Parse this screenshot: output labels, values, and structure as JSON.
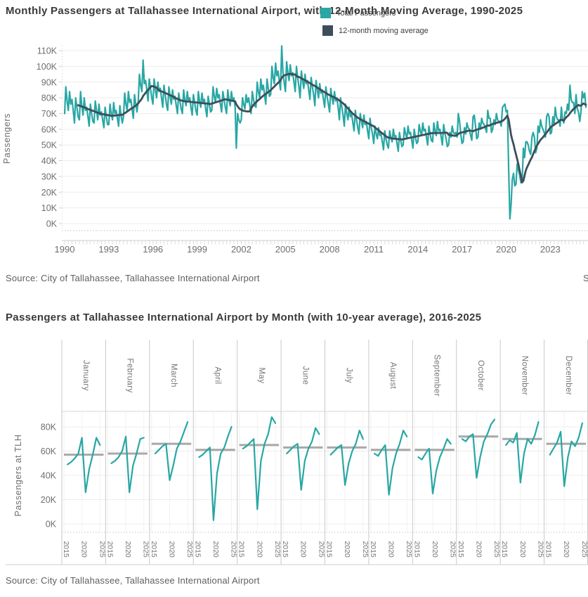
{
  "sources": {
    "chart1": "Source: City of Tallahassee, Tallahassee International Airport",
    "chart2": "Source: City of Tallahassee, Tallahassee International Airport",
    "clipped": "S"
  },
  "chart_data": [
    {
      "type": "line",
      "title": "Monthly Passengers at Tallahassee International Airport, with 12-Month Moving Average, 1990-2025",
      "xlabel": "",
      "ylabel": "Passengers",
      "units": "passengers (thousands)",
      "ylim_thousands": [
        0,
        115
      ],
      "yticks": [
        "0K",
        "10K",
        "20K",
        "30K",
        "40K",
        "50K",
        "60K",
        "70K",
        "80K",
        "90K",
        "100K",
        "110K"
      ],
      "x_tick_years": [
        1990,
        1993,
        1996,
        1999,
        2002,
        2005,
        2008,
        2011,
        2014,
        2017,
        2020,
        2023
      ],
      "x_range": [
        "1990-01",
        "2025-06"
      ],
      "legend_position": "top",
      "grid": true,
      "series": [
        {
          "name": "Total Passengers",
          "color": "#28A7A4",
          "values_by_year": {
            "1990": [
              70,
              87,
              78,
              72,
              84,
              76,
              79,
              72,
              64,
              80,
              74,
              68
            ],
            "1991": [
              66,
              84,
              75,
              69,
              80,
              72,
              74,
              68,
              62,
              76,
              70,
              65
            ],
            "1992": [
              64,
              78,
              72,
              66,
              76,
              69,
              71,
              66,
              61,
              74,
              68,
              63
            ],
            "1993": [
              63,
              76,
              70,
              66,
              77,
              70,
              72,
              67,
              62,
              75,
              69,
              64
            ],
            "1994": [
              68,
              83,
              76,
              72,
              84,
              77,
              79,
              73,
              67,
              82,
              76,
              71
            ],
            "1995": [
              78,
              95,
              88,
              84,
              104,
              89,
              91,
              85,
              78,
              92,
              86,
              80
            ],
            "1996": [
              76,
              92,
              85,
              80,
              90,
              84,
              86,
              80,
              74,
              88,
              82,
              76
            ],
            "1997": [
              72,
              87,
              81,
              76,
              85,
              79,
              81,
              75,
              70,
              83,
              78,
              73
            ],
            "1998": [
              70,
              85,
              79,
              75,
              84,
              78,
              80,
              74,
              69,
              82,
              77,
              72
            ],
            "1999": [
              69,
              84,
              78,
              74,
              83,
              77,
              79,
              73,
              68,
              81,
              76,
              71
            ],
            "2000": [
              72,
              87,
              81,
              77,
              86,
              80,
              82,
              76,
              71,
              84,
              79,
              74
            ],
            "2001": [
              70,
              85,
              79,
              75,
              84,
              78,
              80,
              74,
              48,
              70,
              66,
              64
            ],
            "2002": [
              66,
              80,
              76,
              73,
              82,
              77,
              80,
              75,
              70,
              84,
              79,
              75
            ],
            "2003": [
              74,
              90,
              84,
              80,
              92,
              85,
              88,
              82,
              76,
              92,
              86,
              81
            ],
            "2004": [
              82,
              100,
              93,
              89,
              102,
              94,
              97,
              91,
              85,
              113,
              96,
              90
            ],
            "2005": [
              84,
              103,
              96,
              91,
              101,
              94,
              96,
              90,
              84,
              100,
              93,
              87
            ],
            "2006": [
              80,
              97,
              91,
              86,
              95,
              89,
              91,
              85,
              79,
              93,
              87,
              82
            ],
            "2007": [
              75,
              91,
              85,
              80,
              89,
              83,
              85,
              79,
              74,
              87,
              81,
              76
            ],
            "2008": [
              71,
              86,
              80,
              76,
              84,
              78,
              80,
              74,
              66,
              80,
              74,
              69
            ],
            "2009": [
              62,
              76,
              70,
              66,
              74,
              68,
              70,
              64,
              59,
              72,
              66,
              61
            ],
            "2010": [
              57,
              70,
              65,
              61,
              69,
              63,
              65,
              59,
              54,
              67,
              61,
              57
            ],
            "2011": [
              51,
              62,
              57,
              54,
              61,
              56,
              57,
              52,
              47,
              59,
              54,
              50
            ],
            "2012": [
              48,
              59,
              55,
              52,
              60,
              55,
              56,
              51,
              46,
              58,
              53,
              49
            ],
            "2013": [
              50,
              61,
              57,
              54,
              62,
              57,
              58,
              53,
              48,
              60,
              55,
              51
            ],
            "2014": [
              52,
              63,
              59,
              56,
              64,
              59,
              60,
              55,
              50,
              62,
              57,
              53
            ],
            "2015": [
              52,
              64,
              59,
              56,
              65,
              59,
              60,
              55,
              50,
              63,
              58,
              54
            ],
            "2016": [
              49,
              50,
              58,
              55,
              62,
              58,
              57,
              58,
              55,
              70,
              65,
              57
            ],
            "2017": [
              51,
              52,
              61,
              57,
              64,
              61,
              60,
              56,
              53,
              68,
              69,
              62
            ],
            "2018": [
              54,
              55,
              64,
              60,
              67,
              64,
              63,
              61,
              58,
              72,
              67,
              67
            ],
            "2019": [
              58,
              60,
              66,
              63,
              70,
              66,
              65,
              65,
              62,
              74,
              75,
              76
            ],
            "2020": [
              71,
              72,
              36,
              3,
              12,
              28,
              32,
              24,
              25,
              38,
              34,
              31
            ],
            "2021": [
              26,
              26,
              48,
              42,
              52,
              52,
              50,
              46,
              44,
              55,
              58,
              55
            ],
            "2022": [
              45,
              48,
              62,
              58,
              66,
              62,
              60,
              58,
              55,
              68,
              70,
              68
            ],
            "2023": [
              57,
              58,
              68,
              63,
              74,
              68,
              66,
              66,
              62,
              74,
              66,
              64
            ],
            "2024": [
              71,
              70,
              76,
              72,
              88,
              79,
              77,
              77,
              70,
              82,
              73,
              71
            ],
            "2025": [
              65,
              71,
              84,
              80,
              83,
              74
            ]
          }
        },
        {
          "name": "12-month moving average",
          "color": "#3E4D59",
          "derivation": "trailing 12-month mean of Total Passengers"
        }
      ]
    },
    {
      "type": "line",
      "subtype": "small-multiples-by-month",
      "title": "Passengers at Tallahassee International Airport by Month (with 10-year average),  2016-2025",
      "ylabel": "Passengers at TLH",
      "units": "passengers (thousands)",
      "ylim_thousands": [
        0,
        90
      ],
      "yticks": [
        "0K",
        "20K",
        "40K",
        "60K",
        "80K"
      ],
      "years": [
        2016,
        2017,
        2018,
        2019,
        2020,
        2021,
        2022,
        2023,
        2024,
        2025
      ],
      "year_ticks": [
        "2015",
        "2020",
        "2025"
      ],
      "series_color": "#28A7A4",
      "average_line_color": "#9E9E9E",
      "panels": [
        {
          "month": "January",
          "values": [
            49,
            51,
            54,
            58,
            71,
            26,
            45,
            57,
            71,
            65
          ],
          "average": 57
        },
        {
          "month": "February",
          "values": [
            50,
            52,
            55,
            60,
            72,
            26,
            48,
            58,
            70,
            71
          ],
          "average": 58
        },
        {
          "month": "March",
          "values": [
            58,
            61,
            64,
            66,
            36,
            48,
            62,
            68,
            76,
            84
          ],
          "average": 66
        },
        {
          "month": "April",
          "values": [
            55,
            57,
            60,
            63,
            3,
            42,
            58,
            63,
            72,
            80
          ],
          "average": 61
        },
        {
          "month": "May",
          "values": [
            62,
            64,
            67,
            70,
            12,
            52,
            66,
            74,
            88,
            83
          ],
          "average": 65
        },
        {
          "month": "June",
          "values": [
            58,
            61,
            64,
            66,
            28,
            52,
            62,
            68,
            79,
            74
          ],
          "average": 63
        },
        {
          "month": "July",
          "values": [
            57,
            60,
            63,
            65,
            32,
            50,
            60,
            66,
            77,
            70
          ],
          "average": 63
        },
        {
          "month": "August",
          "values": [
            58,
            56,
            61,
            65,
            24,
            46,
            58,
            66,
            77,
            72
          ],
          "average": 61
        },
        {
          "month": "September",
          "values": [
            55,
            53,
            58,
            62,
            25,
            44,
            55,
            62,
            70,
            66
          ],
          "average": 61
        },
        {
          "month": "October",
          "values": [
            70,
            68,
            72,
            74,
            38,
            55,
            68,
            74,
            82,
            86
          ],
          "average": 72
        },
        {
          "month": "November",
          "values": [
            65,
            69,
            67,
            75,
            34,
            58,
            70,
            66,
            73,
            84
          ],
          "average": 70
        },
        {
          "month": "December",
          "values": [
            57,
            62,
            67,
            76,
            31,
            55,
            68,
            64,
            71,
            83
          ],
          "average": 66
        }
      ]
    }
  ]
}
